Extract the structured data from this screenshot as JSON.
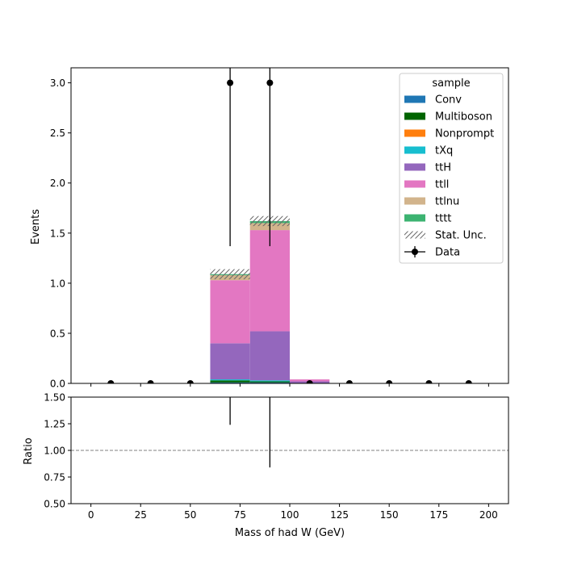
{
  "chart_data": {
    "type": "bar",
    "stacked": true,
    "xlabel": "Mass of had W (GeV)",
    "xlim": [
      -10,
      210
    ],
    "x_ticks": [
      0,
      25,
      50,
      75,
      100,
      125,
      150,
      175,
      200
    ],
    "bin_edges": [
      0,
      20,
      40,
      60,
      80,
      100,
      120,
      140,
      160,
      180,
      200
    ],
    "main": {
      "ylabel": "Events",
      "ylim": [
        0,
        3.15
      ],
      "y_ticks": [
        0.0,
        0.5,
        1.0,
        1.5,
        2.0,
        2.5,
        3.0
      ],
      "y_tick_labels": [
        "0.0",
        "0.5",
        "1.0",
        "1.5",
        "2.0",
        "2.5",
        "3.0"
      ]
    },
    "ratio": {
      "ylabel": "Ratio",
      "ylim": [
        0.5,
        1.5
      ],
      "y_ticks": [
        0.5,
        0.75,
        1.0,
        1.25,
        1.5
      ],
      "y_tick_labels": [
        "0.50",
        "0.75",
        "1.00",
        "1.25",
        "1.50"
      ],
      "reference_line": 1.0,
      "errorbars": [
        {
          "x": 70,
          "low": 1.24,
          "high": 1.5
        },
        {
          "x": 90,
          "low": 0.84,
          "high": 1.5
        }
      ]
    },
    "legend": {
      "title": "sample",
      "placement": "top-right"
    },
    "series": [
      {
        "name": "Conv",
        "color": "#1f77b4",
        "values": [
          0,
          0,
          0,
          0.01,
          0.01,
          0.0,
          0,
          0,
          0,
          0
        ]
      },
      {
        "name": "Multiboson",
        "color": "#006400",
        "values": [
          0,
          0,
          0,
          0.02,
          0.01,
          0.0,
          0,
          0,
          0,
          0
        ]
      },
      {
        "name": "Nonprompt",
        "color": "#ff7f0e",
        "values": [
          0,
          0,
          0,
          0.0,
          0.0,
          0.0,
          0,
          0,
          0,
          0
        ]
      },
      {
        "name": "tXq",
        "color": "#17becf",
        "values": [
          0,
          0,
          0,
          0.01,
          0.01,
          0.0,
          0,
          0,
          0,
          0
        ]
      },
      {
        "name": "ttH",
        "color": "#9467bd",
        "values": [
          0,
          0,
          0,
          0.36,
          0.49,
          0.02,
          0,
          0,
          0,
          0
        ]
      },
      {
        "name": "ttll",
        "color": "#e377c2",
        "values": [
          0,
          0,
          0,
          0.63,
          1.01,
          0.02,
          0,
          0,
          0,
          0
        ]
      },
      {
        "name": "ttlnu",
        "color": "#d2b48c",
        "values": [
          0,
          0,
          0,
          0.05,
          0.07,
          0.0,
          0,
          0,
          0,
          0
        ]
      },
      {
        "name": "tttt",
        "color": "#3cb371",
        "values": [
          0,
          0,
          0,
          0.01,
          0.02,
          0.0,
          0,
          0,
          0,
          0
        ]
      }
    ],
    "stat_unc": {
      "name": "Stat. Unc.",
      "color": "#696969",
      "values": [
        0,
        0,
        0,
        0.05,
        0.05,
        0.0,
        0,
        0,
        0,
        0
      ]
    },
    "data": {
      "name": "Data",
      "x": [
        10,
        30,
        50,
        70,
        90,
        110,
        130,
        150,
        170,
        190
      ],
      "y": [
        0,
        0,
        0,
        3,
        3,
        0,
        0,
        0,
        0,
        0
      ],
      "err_low": [
        0,
        0,
        0,
        1.63,
        1.63,
        0,
        0,
        0,
        0,
        0
      ],
      "err_high": [
        0,
        0,
        0,
        2.92,
        2.92,
        0,
        0,
        0,
        0,
        0
      ]
    }
  }
}
